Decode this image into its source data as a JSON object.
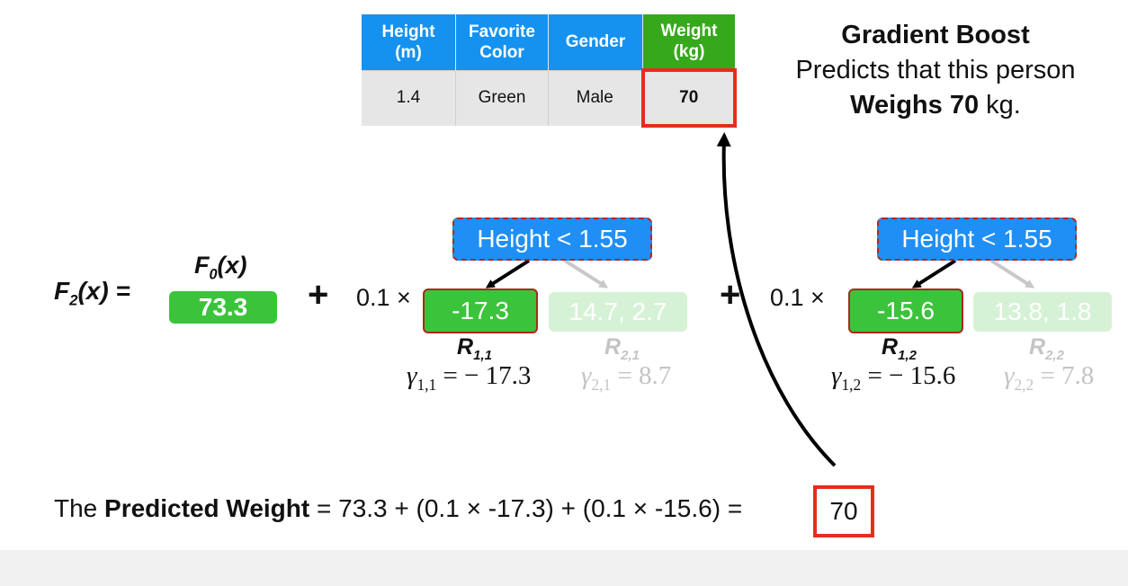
{
  "table": {
    "headers": [
      "Height\n(m)",
      "Favorite\nColor",
      "Gender",
      "Weight\n(kg)"
    ],
    "row": [
      "1.4",
      "Green",
      "Male",
      "70"
    ]
  },
  "summary": {
    "line1": "Gradient Boost",
    "line2": "Predicts that this person",
    "line3_bold": "Weighs 70",
    "line3_rest": " kg."
  },
  "formula": {
    "lhs_f": "F",
    "lhs_sub": "2",
    "lhs_rest": "(x) =",
    "f0_label_f": "F",
    "f0_label_sub": "0",
    "f0_label_rest": "(x)",
    "f0_value": "73.3",
    "plus": "+",
    "learning_rate": "0.1 ×"
  },
  "tree1": {
    "split": "Height < 1.55",
    "leaf_left": "-17.3",
    "leaf_right": "14.7, 2.7",
    "r_left": "R",
    "r_left_sub": "1,1",
    "r_right": "R",
    "r_right_sub": "2,1",
    "gamma_left_sub": "1,1",
    "gamma_left_val": "= − 17.3",
    "gamma_right_sub": "2,1",
    "gamma_right_val": "= 8.7"
  },
  "tree2": {
    "split": "Height < 1.55",
    "leaf_left": "-15.6",
    "leaf_right": "13.8, 1.8",
    "r_left": "R",
    "r_left_sub": "1,2",
    "r_right": "R",
    "r_right_sub": "2,2",
    "gamma_left_sub": "1,2",
    "gamma_left_val": "= − 15.6",
    "gamma_right_sub": "2,2",
    "gamma_right_val": "= 7.8"
  },
  "gamma_symbol": "γ",
  "prediction": {
    "prefix": "The ",
    "bold": "Predicted Weight",
    "expression": " = 73.3 + (0.1 × -17.3) + (0.1 × -15.6) =",
    "result": "70"
  },
  "colors": {
    "blue": "#1f8ff5",
    "green": "#3bc43b",
    "red": "#e52d1f",
    "faded_green": "#d6f2d6",
    "table_header": "#1592f0",
    "weight_header": "#36a81c"
  }
}
